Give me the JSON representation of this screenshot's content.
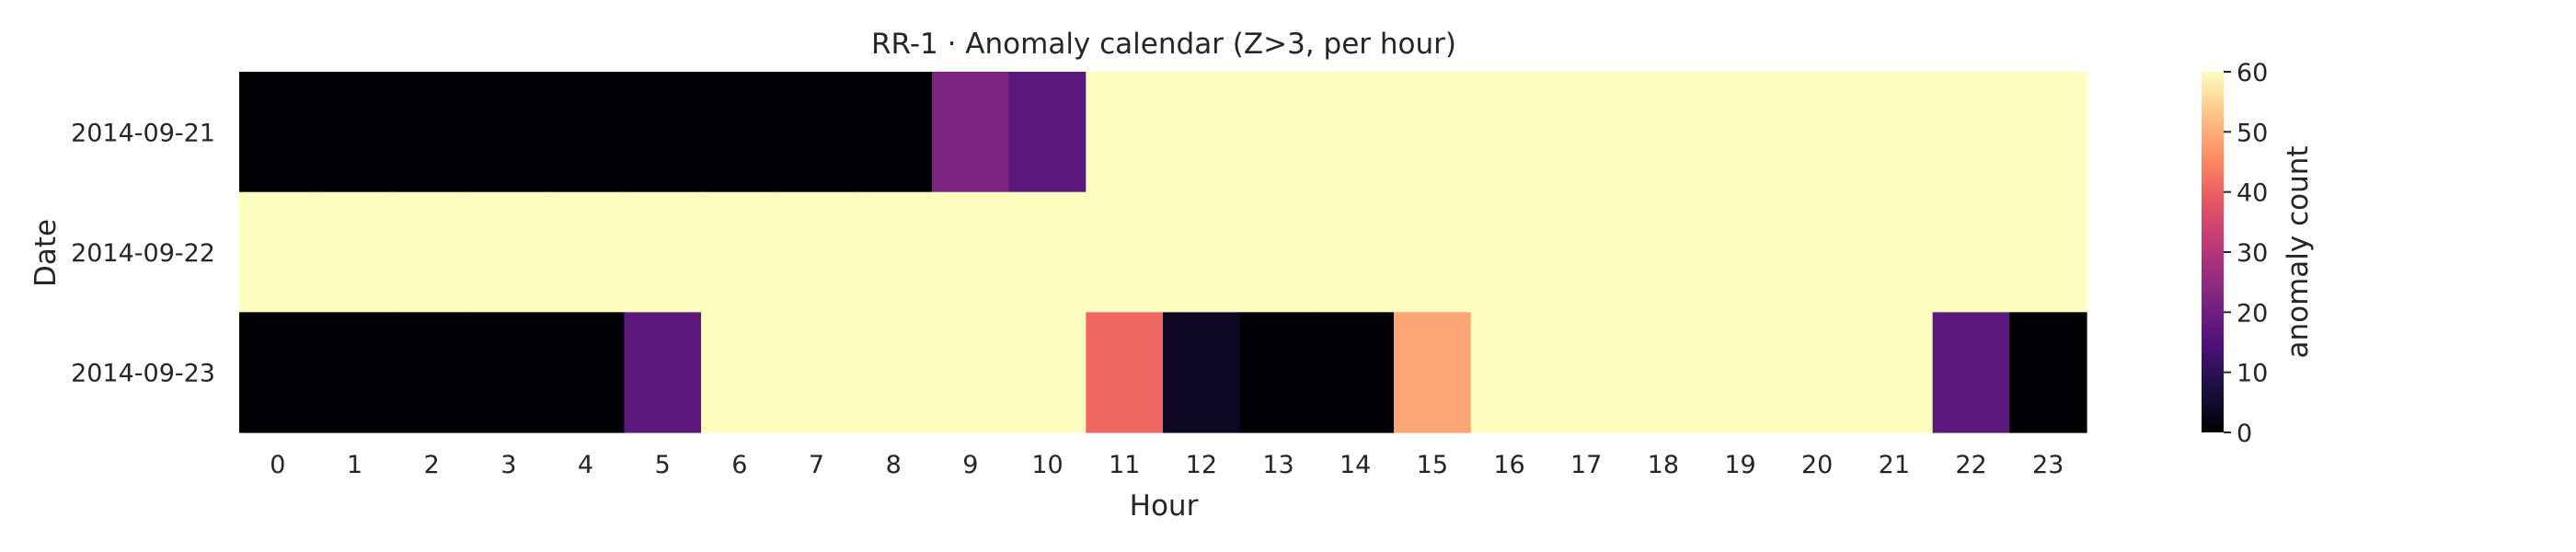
{
  "chart_data": {
    "type": "heatmap",
    "title": "RR-1 · Anomaly calendar (Z>3, per hour)",
    "xlabel": "Hour",
    "ylabel": "Date",
    "x": [
      0,
      1,
      2,
      3,
      4,
      5,
      6,
      7,
      8,
      9,
      10,
      11,
      12,
      13,
      14,
      15,
      16,
      17,
      18,
      19,
      20,
      21,
      22,
      23
    ],
    "y": [
      "2014-09-21",
      "2014-09-22",
      "2014-09-23"
    ],
    "values": [
      [
        0,
        0,
        0,
        0,
        0,
        0,
        0,
        0,
        0,
        22,
        17,
        60,
        60,
        60,
        60,
        60,
        60,
        60,
        60,
        60,
        60,
        60,
        60,
        60
      ],
      [
        60,
        60,
        60,
        60,
        60,
        60,
        60,
        60,
        60,
        60,
        60,
        60,
        60,
        60,
        60,
        60,
        60,
        60,
        60,
        60,
        60,
        60,
        60,
        60
      ],
      [
        0,
        0,
        0,
        0,
        0,
        17,
        60,
        60,
        60,
        60,
        60,
        41,
        4,
        0,
        0,
        49,
        60,
        60,
        60,
        60,
        60,
        60,
        17,
        0
      ]
    ],
    "colorbar": {
      "label": "anomaly count",
      "range": [
        0,
        60
      ],
      "ticks": [
        0,
        10,
        20,
        30,
        40,
        50,
        60
      ],
      "colormap": "magma"
    },
    "grid": false
  }
}
